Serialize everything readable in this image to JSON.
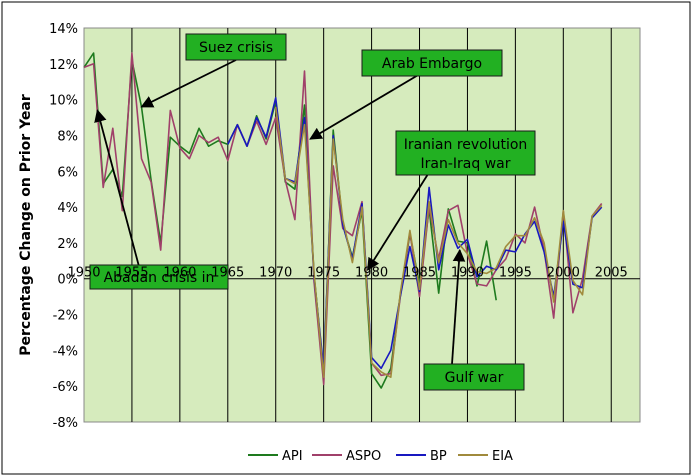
{
  "chart_data": {
    "type": "line",
    "title": "",
    "xlabel": "",
    "ylabel": "Percentage Change on Prior Year",
    "xlim": [
      1950,
      2008
    ],
    "ylim": [
      -8,
      14
    ],
    "x_ticks": [
      1950,
      1955,
      1960,
      1965,
      1970,
      1975,
      1980,
      1985,
      1990,
      1995,
      2000,
      2005
    ],
    "x_tick_labels": [
      "1950",
      "1955",
      "1960",
      "1965",
      "1970",
      "1975",
      "1980",
      "1985",
      "1990",
      "1995",
      "2000",
      "2005"
    ],
    "y_ticks": [
      -8,
      -6,
      -4,
      -2,
      0,
      2,
      4,
      6,
      8,
      10,
      12,
      14
    ],
    "y_tick_labels": [
      "-8%",
      "-6%",
      "-4%",
      "-2%",
      "0%",
      "2%",
      "4%",
      "6%",
      "8%",
      "10%",
      "12%",
      "14%"
    ],
    "grid": "vertical",
    "plot_background": "#d6ebbd",
    "legend_position": "bottom",
    "series": [
      {
        "name": "API",
        "color": "#1e7a1e",
        "x": [
          1950,
          1951,
          1952,
          1953,
          1954,
          1955,
          1956,
          1957,
          1958,
          1959,
          1960,
          1961,
          1962,
          1963,
          1964,
          1965,
          1966,
          1967,
          1968,
          1969,
          1970,
          1971,
          1972,
          1973,
          1974,
          1975,
          1976,
          1977,
          1978,
          1979,
          1980,
          1981,
          1982,
          1983,
          1984,
          1985,
          1986,
          1987,
          1988,
          1989,
          1990,
          1991,
          1992,
          1993
        ],
        "values": [
          11.8,
          12.6,
          5.3,
          6.1,
          4.6,
          12.2,
          9.6,
          5.5,
          2.0,
          7.9,
          7.4,
          7.0,
          8.4,
          7.4,
          7.7,
          7.5,
          8.6,
          7.4,
          9.1,
          7.8,
          9.9,
          5.4,
          5.0,
          9.7,
          0.2,
          -5.3,
          8.3,
          3.0,
          1.2,
          3.8,
          -5.3,
          -6.1,
          -5.0,
          -0.9,
          2.5,
          -0.3,
          3.9,
          -0.8,
          3.9,
          2.1,
          2.0,
          -0.4,
          2.1,
          -1.2
        ]
      },
      {
        "name": "ASPO",
        "color": "#a0406a",
        "x": [
          1950,
          1951,
          1952,
          1953,
          1954,
          1955,
          1956,
          1957,
          1958,
          1959,
          1960,
          1961,
          1962,
          1963,
          1964,
          1965,
          1966,
          1967,
          1968,
          1969,
          1970,
          1971,
          1972,
          1973,
          1974,
          1975,
          1976,
          1977,
          1978,
          1979,
          1980,
          1981,
          1982,
          1983,
          1984,
          1985,
          1986,
          1987,
          1988,
          1989,
          1990,
          1991,
          1992,
          1993,
          1994,
          1995,
          1996,
          1997,
          1998,
          1999,
          2000,
          2001,
          2002,
          2003,
          2004
        ],
        "values": [
          11.8,
          12.0,
          5.1,
          8.4,
          3.8,
          12.6,
          6.7,
          5.4,
          1.6,
          9.4,
          7.3,
          6.7,
          8.0,
          7.6,
          7.9,
          6.6,
          8.6,
          7.4,
          8.8,
          7.5,
          9.0,
          5.5,
          3.3,
          11.6,
          -0.2,
          -5.9,
          6.3,
          2.8,
          2.4,
          4.3,
          -4.7,
          -5.4,
          -5.3,
          -1.0,
          2.6,
          -1.0,
          4.0,
          1.1,
          3.8,
          4.1,
          1.4,
          -0.3,
          -0.4,
          0.5,
          1.1,
          2.5,
          2.0,
          4.0,
          1.6,
          -2.2,
          3.8,
          -1.9,
          0,
          3.5,
          4.2
        ]
      },
      {
        "name": "BP",
        "color": "#1818c0",
        "x": [
          1965,
          1966,
          1967,
          1968,
          1969,
          1970,
          1971,
          1972,
          1973,
          1974,
          1975,
          1976,
          1977,
          1978,
          1979,
          1980,
          1981,
          1982,
          1983,
          1984,
          1985,
          1986,
          1987,
          1988,
          1989,
          1990,
          1991,
          1992,
          1993,
          1994,
          1995,
          1996,
          1997,
          1998,
          1999,
          2000,
          2001,
          2002,
          2003,
          2004
        ],
        "values": [
          7.5,
          8.6,
          7.4,
          9.0,
          7.9,
          10.1,
          5.6,
          5.4,
          9.0,
          0.1,
          -5.0,
          8.0,
          3.0,
          1.1,
          4.2,
          -4.4,
          -5.0,
          -4.0,
          -1.0,
          1.8,
          -0.7,
          5.1,
          0.5,
          3.0,
          1.7,
          2.2,
          0.1,
          0.7,
          0.5,
          1.6,
          1.5,
          2.5,
          3.2,
          1.5,
          -1.0,
          3.2,
          -0.3,
          -0.5,
          3.4,
          4.0
        ]
      },
      {
        "name": "EIA",
        "color": "#a08a3c",
        "x": [
          1970,
          1971,
          1972,
          1973,
          1974,
          1975,
          1976,
          1977,
          1978,
          1979,
          1980,
          1981,
          1982,
          1983,
          1984,
          1985,
          1986,
          1987,
          1988,
          1989,
          1990,
          1991,
          1992,
          1993,
          1994,
          1995,
          1996,
          1997,
          1998,
          1999,
          2000,
          2001,
          2002,
          2003,
          2004
        ],
        "values": [
          9.6,
          5.6,
          5.3,
          8.6,
          0.3,
          -5.5,
          7.8,
          3.3,
          0.9,
          4.0,
          -4.7,
          -5.2,
          -5.5,
          -0.8,
          2.7,
          -0.6,
          4.3,
          0.9,
          3.3,
          2.0,
          1.4,
          0.4,
          0.3,
          0.6,
          1.8,
          2.4,
          2.4,
          3.4,
          2.0,
          -1.3,
          3.8,
          -0.1,
          -0.9,
          3.5,
          4.1
        ]
      }
    ],
    "annotations": [
      {
        "label": "Suez crisis",
        "target_x": 1956,
        "target_y": 9.6
      },
      {
        "label": "Arab Embargo",
        "target_x": 1973.6,
        "target_y": 7.8
      },
      {
        "label": "Iranian revolution",
        "label2": "Iran-Iraq war",
        "target_x": 1979.6,
        "target_y": 0.5
      },
      {
        "label": "Abadan crisis in",
        "target_x": 1951.4,
        "target_y": 9.4
      },
      {
        "label": "Gulf war",
        "target_x": 1989.2,
        "target_y": 1.6
      }
    ]
  }
}
